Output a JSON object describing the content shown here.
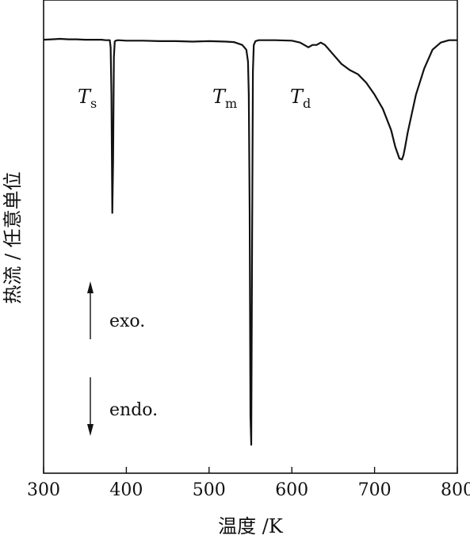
{
  "chart_data": {
    "type": "line",
    "xlabel": "温度 /K",
    "ylabel": "热流 / 任意单位",
    "xlim": [
      300,
      800
    ],
    "ylim": [
      0,
      1
    ],
    "xticks": [
      "300",
      "400",
      "500",
      "600",
      "700",
      "800"
    ],
    "grid": false,
    "series": [
      {
        "x": [
          300,
          310,
          320,
          330,
          340,
          350,
          360,
          370,
          375,
          380,
          381,
          382,
          383,
          384,
          385,
          386,
          387,
          390,
          400,
          420,
          440,
          460,
          480,
          500,
          520,
          530,
          540,
          545,
          547,
          548,
          549,
          550,
          551,
          552,
          553,
          554,
          556,
          560,
          580,
          600,
          610,
          615,
          620,
          625,
          630,
          635,
          640,
          650,
          660,
          670,
          680,
          690,
          700,
          710,
          720,
          725,
          730,
          733,
          735,
          737,
          740,
          745,
          750,
          760,
          770,
          780,
          790,
          800
        ],
        "y": [
          0.916,
          0.917,
          0.918,
          0.917,
          0.917,
          0.916,
          0.916,
          0.916,
          0.915,
          0.915,
          0.9,
          0.8,
          0.55,
          0.66,
          0.88,
          0.912,
          0.914,
          0.915,
          0.914,
          0.914,
          0.913,
          0.913,
          0.912,
          0.913,
          0.912,
          0.911,
          0.905,
          0.895,
          0.87,
          0.8,
          0.55,
          0.12,
          0.06,
          0.5,
          0.85,
          0.905,
          0.913,
          0.915,
          0.915,
          0.914,
          0.91,
          0.905,
          0.9,
          0.905,
          0.905,
          0.91,
          0.905,
          0.885,
          0.865,
          0.852,
          0.843,
          0.825,
          0.8,
          0.77,
          0.725,
          0.69,
          0.665,
          0.663,
          0.672,
          0.69,
          0.72,
          0.76,
          0.8,
          0.855,
          0.895,
          0.91,
          0.915,
          0.915
        ]
      }
    ],
    "annotations": {
      "ts": {
        "main": "T",
        "sub": "s"
      },
      "tm": {
        "main": "T",
        "sub": "m"
      },
      "td": {
        "main": "T",
        "sub": "d"
      },
      "exo": "exo.",
      "endo": "endo."
    }
  }
}
